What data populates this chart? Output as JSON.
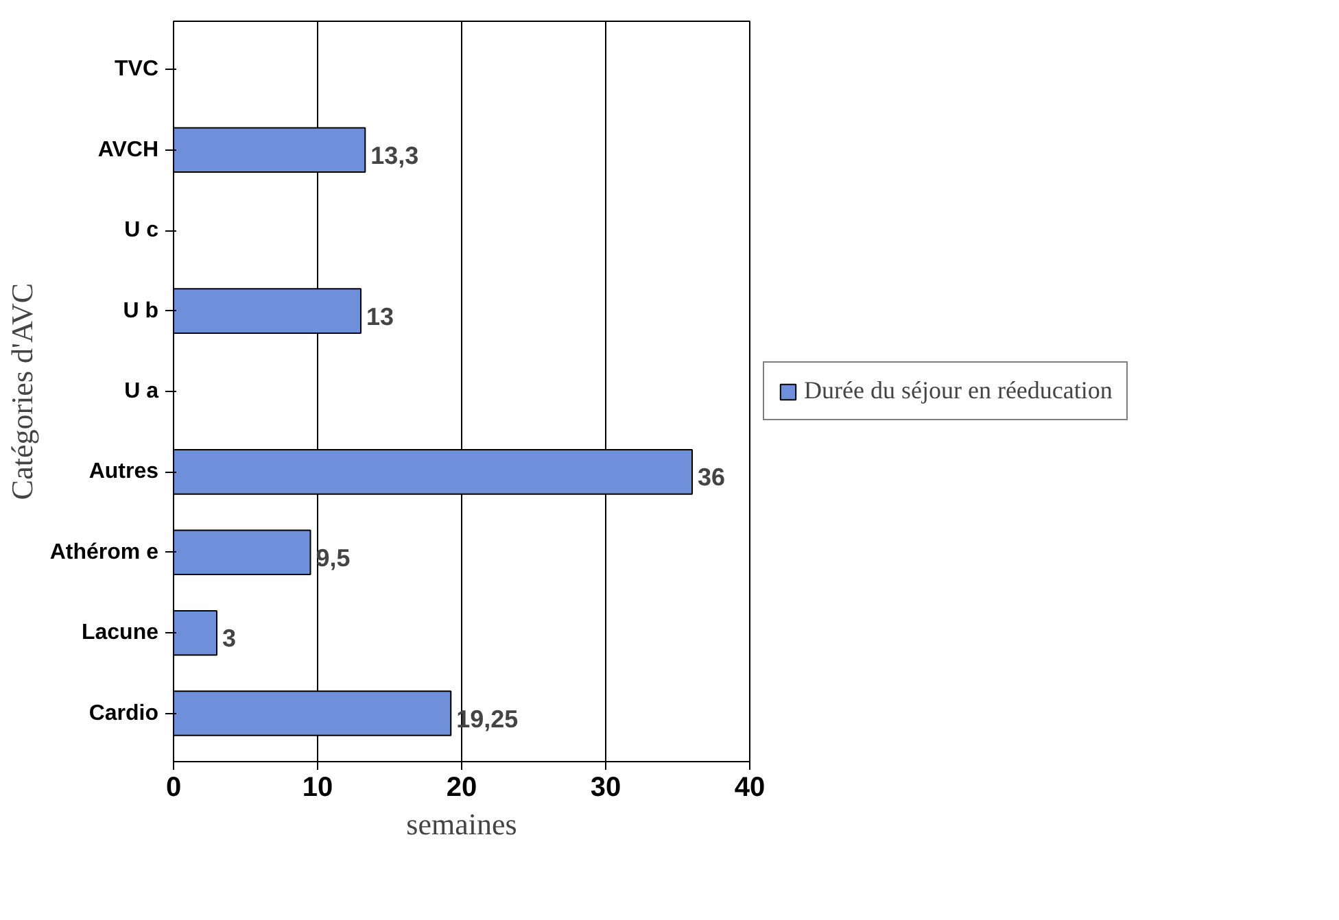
{
  "chart_data": {
    "type": "bar",
    "orientation": "horizontal",
    "categories": [
      "TVC",
      "AVCH",
      "U c",
      "U b",
      "U a",
      "Autres",
      "Athérom e",
      "Lacune",
      "Cardio"
    ],
    "series": [
      {
        "name": "Durée du séjour en réeducation",
        "color": "#6f8fdb",
        "values": [
          null,
          13.3,
          null,
          13,
          null,
          36,
          9.5,
          3,
          19.25
        ],
        "value_labels": [
          null,
          "13,3",
          null,
          "13",
          null,
          "36",
          "9,5",
          "3",
          "19,25"
        ]
      }
    ],
    "xlim": [
      0,
      40
    ],
    "xticks": [
      0,
      10,
      20,
      30,
      40
    ],
    "grid": "x",
    "legend": "right",
    "xlabel": "semaines",
    "ylabel": "Catégories d'AVC"
  }
}
